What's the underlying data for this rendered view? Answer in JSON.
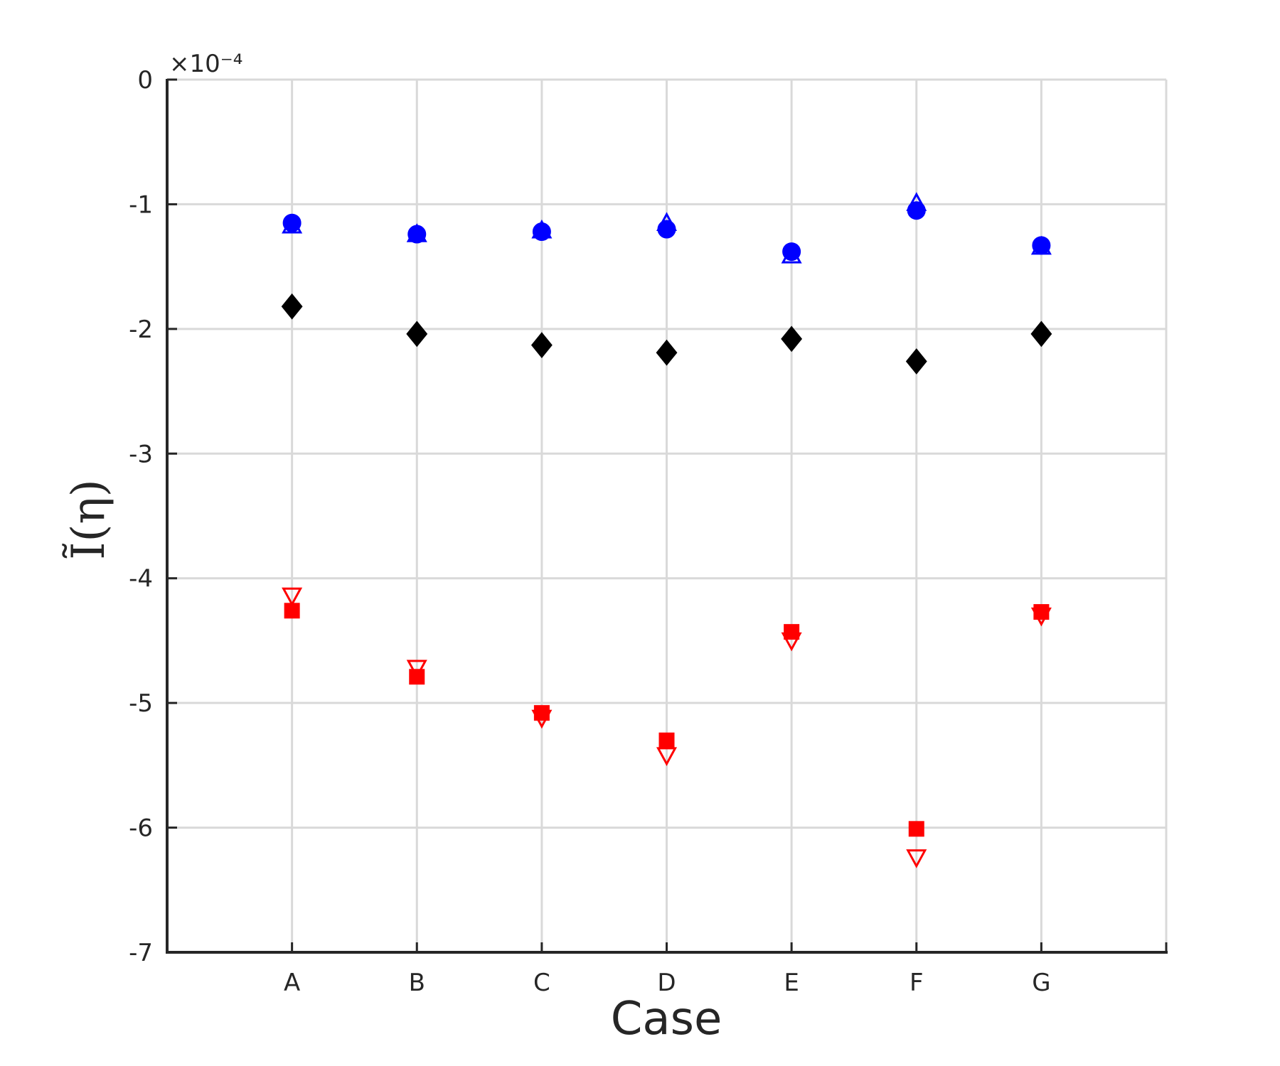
{
  "chart_data": {
    "type": "scatter",
    "title": "",
    "xlabel": "Case",
    "ylabel": "Ĩ(η)",
    "y_exponent_label": "×10⁻⁴",
    "categories": [
      "A",
      "B",
      "C",
      "D",
      "E",
      "F",
      "G"
    ],
    "ylim": [
      -7,
      0
    ],
    "yticks": [
      "0",
      "-1",
      "-2",
      "-3",
      "-4",
      "-5",
      "-6",
      "-7"
    ],
    "ytick_values": [
      0,
      -1,
      -2,
      -3,
      -4,
      -5,
      -6,
      -7
    ],
    "grid": true,
    "series": [
      {
        "marker": "circle-filled",
        "color": "#0000ff",
        "values": [
          -1.15,
          -1.24,
          -1.22,
          -1.2,
          -1.38,
          -1.05,
          -1.33
        ]
      },
      {
        "marker": "triangle-up-open",
        "color": "#0000ff",
        "values": [
          -1.18,
          -1.25,
          -1.22,
          -1.16,
          -1.42,
          -1.0,
          -1.35
        ]
      },
      {
        "marker": "diamond-filled",
        "color": "#000000",
        "values": [
          -1.82,
          -2.04,
          -2.13,
          -2.19,
          -2.08,
          -2.26,
          -2.04
        ]
      },
      {
        "marker": "square-filled",
        "color": "#ff0000",
        "values": [
          -4.26,
          -4.79,
          -5.08,
          -5.3,
          -4.43,
          -6.01,
          -4.27
        ]
      },
      {
        "marker": "triangle-down-open",
        "color": "#ff0000",
        "values": [
          -4.14,
          -4.72,
          -5.12,
          -5.42,
          -4.5,
          -6.24,
          -4.3
        ]
      }
    ]
  }
}
